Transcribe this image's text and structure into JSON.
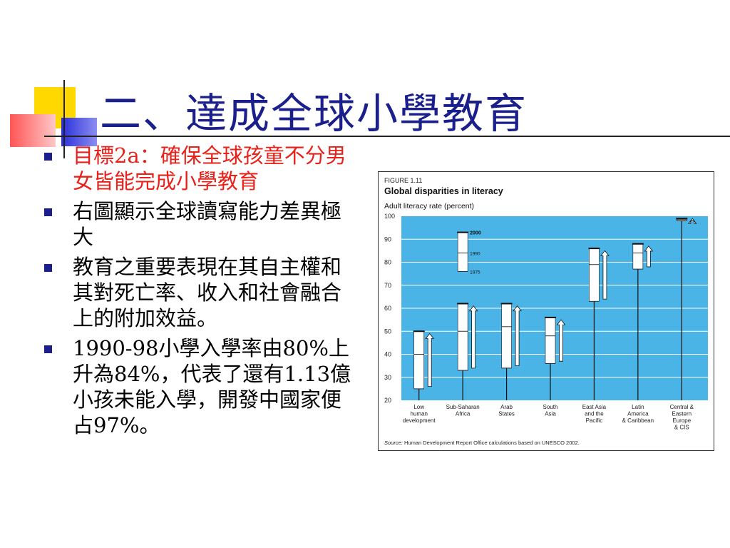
{
  "slide": {
    "title": "二、達成全球小學教育",
    "bullets": [
      {
        "text": "目標2a：確保全球孩童不分男女皆能完成小學教育",
        "color": "#e8211a"
      },
      {
        "text": "右圖顯示全球讀寫能力差異極大",
        "color": "#000000"
      },
      {
        "text": "教育之重要表現在其自主權和其對死亡率、收入和社會融合上的附加效益。",
        "color": "#000000"
      },
      {
        "text": "1990-98小學入學率由80%上升為84%，代表了還有1.13億小孩未能入學，開發中國家便占97%。",
        "color": "#000000"
      }
    ]
  },
  "chart_data": {
    "type": "range-bar",
    "figure_label": "FIGURE 1.11",
    "title": "Global disparities in literacy",
    "ylabel": "Adult literacy rate (percent)",
    "ylim": [
      20,
      100
    ],
    "yticks": [
      20,
      30,
      40,
      50,
      60,
      70,
      80,
      90,
      100
    ],
    "grid": true,
    "background": "#4bb4e6",
    "annotation_labels": {
      "top": "2000",
      "mid": "1990",
      "bottom": "1975"
    },
    "source_label": "Source:",
    "source": "Human Development Report Office calculations based on UNESCO 2002.",
    "categories": [
      {
        "label": [
          "Low",
          "human",
          "development"
        ],
        "y1975": 25,
        "y1990": 40,
        "y2000": 50,
        "arrow_from": 26,
        "arrow_to": 49
      },
      {
        "label": [
          "Sub-Saharan",
          "Africa"
        ],
        "y1975": 33,
        "y1990": 50,
        "y2000": 62,
        "arrow_from": 34,
        "arrow_to": 61
      },
      {
        "label": [
          "Arab",
          "States"
        ],
        "y1975": 34,
        "y1990": 52,
        "y2000": 62,
        "arrow_from": 35,
        "arrow_to": 61
      },
      {
        "label": [
          "South",
          "Asia"
        ],
        "y1975": 36,
        "y1990": 48,
        "y2000": 56,
        "arrow_from": 37,
        "arrow_to": 55
      },
      {
        "label": [
          "East Asia",
          "and the",
          "Pacific"
        ],
        "y1975": 63,
        "y1990": 79,
        "y2000": 86,
        "arrow_from": 64,
        "arrow_to": 85
      },
      {
        "label": [
          "Latin",
          "America",
          "& Caribbean"
        ],
        "y1975": 77,
        "y1990": 84,
        "y2000": 88,
        "arrow_from": 78,
        "arrow_to": 87
      },
      {
        "label": [
          "Central &",
          "Eastern",
          "Europe",
          "& CIS"
        ],
        "y1975": 98,
        "y1990": 98.5,
        "y2000": 99,
        "arrow_from": 98,
        "arrow_to": 99
      }
    ]
  }
}
